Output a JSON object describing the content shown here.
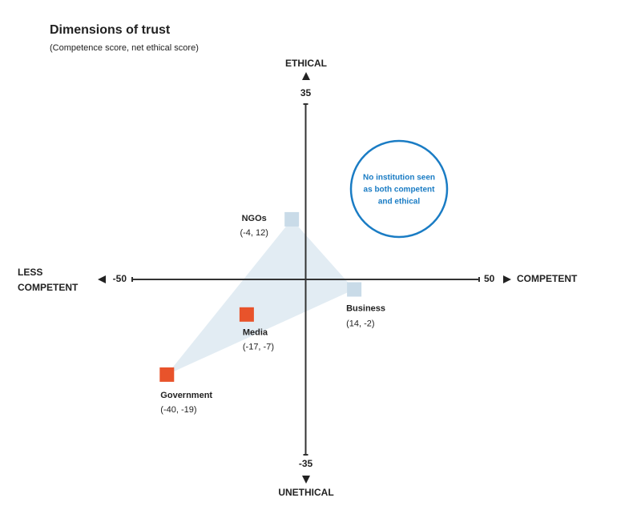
{
  "chart_data": {
    "type": "scatter",
    "title": "Dimensions of trust",
    "subtitle": "(Competence score, net ethical score)",
    "xlim": [
      -50,
      50
    ],
    "ylim": [
      -35,
      35
    ],
    "xticks": [
      -50,
      50
    ],
    "yticks": [
      -35,
      35
    ],
    "y_label_top": "ETHICAL",
    "y_label_bottom": "UNETHICAL",
    "x_label_right": "COMPETENT",
    "x_label_left": [
      "LESS",
      "COMPETENT"
    ],
    "annotation": [
      "No institution seen",
      "as both competent",
      "and ethical"
    ],
    "series": [
      {
        "name": "NGOs",
        "color": "#c9dbe8",
        "x": [
          -4
        ],
        "y": [
          12
        ],
        "value_labels": [
          "(-4, 12)"
        ]
      },
      {
        "name": "Business",
        "color": "#c9dbe8",
        "x": [
          14
        ],
        "y": [
          -2
        ],
        "value_labels": [
          "(14, -2)"
        ]
      },
      {
        "name": "Media",
        "color": "#e8532b",
        "x": [
          -17
        ],
        "y": [
          -7
        ],
        "value_labels": [
          "(-17, -7)"
        ]
      },
      {
        "name": "Government",
        "color": "#e8532b",
        "x": [
          -40
        ],
        "y": [
          -19
        ],
        "value_labels": [
          "(-40, -19)"
        ]
      }
    ]
  }
}
